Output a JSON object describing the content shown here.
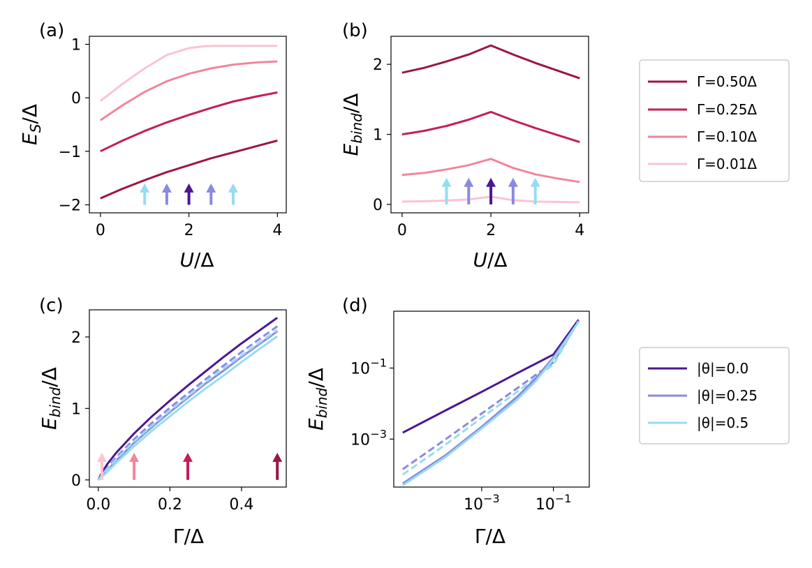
{
  "colors": {
    "g050": "#9c1545",
    "g025": "#c41e55",
    "g010": "#f2869a",
    "g001": "#fbc4d0",
    "th00": "#4a1890",
    "th025": "#8a8ae0",
    "th05": "#96dcf0"
  },
  "legend_top": {
    "entries": [
      {
        "label": "Γ=0.50Δ",
        "color_key": "g050"
      },
      {
        "label": "Γ=0.25Δ",
        "color_key": "g025"
      },
      {
        "label": "Γ=0.10Δ",
        "color_key": "g010"
      },
      {
        "label": "Γ=0.01Δ",
        "color_key": "g001"
      }
    ]
  },
  "legend_bottom": {
    "entries": [
      {
        "label": "|θ|=0.0",
        "color_key": "th00"
      },
      {
        "label": "|θ|=0.25",
        "color_key": "th025"
      },
      {
        "label": "|θ|=0.5",
        "color_key": "th05"
      }
    ]
  },
  "chart_data": [
    {
      "panel": "(a)",
      "type": "line",
      "xlabel": "U/Δ",
      "ylabel": "E_S/Δ",
      "xlim": [
        -0.25,
        4.2
      ],
      "ylim": [
        -2.15,
        1.15
      ],
      "xticks": [
        {
          "v": 0,
          "label": "0"
        },
        {
          "v": 2,
          "label": "2"
        },
        {
          "v": 4,
          "label": "4"
        }
      ],
      "yticks": [
        {
          "v": -2,
          "label": "−2"
        },
        {
          "v": -1,
          "label": "−1"
        },
        {
          "v": 0,
          "label": "0"
        },
        {
          "v": 1,
          "label": "1"
        }
      ],
      "series": [
        {
          "name": "Γ=0.50Δ",
          "color_key": "g050",
          "x": [
            0,
            0.5,
            1,
            1.5,
            2,
            2.5,
            3,
            3.5,
            4
          ],
          "y": [
            -1.88,
            -1.7,
            -1.54,
            -1.39,
            -1.26,
            -1.13,
            -1.02,
            -0.91,
            -0.8
          ]
        },
        {
          "name": "Γ=0.25Δ",
          "color_key": "g025",
          "x": [
            0,
            0.5,
            1,
            1.5,
            2,
            2.5,
            3,
            3.5,
            4
          ],
          "y": [
            -1.0,
            -0.8,
            -0.62,
            -0.46,
            -0.32,
            -0.19,
            -0.07,
            0.02,
            0.1
          ]
        },
        {
          "name": "Γ=0.10Δ",
          "color_key": "g010",
          "x": [
            0,
            0.5,
            1,
            1.5,
            2,
            2.5,
            3,
            3.5,
            4
          ],
          "y": [
            -0.42,
            -0.14,
            0.11,
            0.31,
            0.45,
            0.55,
            0.62,
            0.66,
            0.68
          ]
        },
        {
          "name": "Γ=0.01Δ",
          "color_key": "g001",
          "x": [
            0,
            0.5,
            1,
            1.5,
            2,
            2.3,
            2.5,
            3,
            3.5,
            4
          ],
          "y": [
            -0.06,
            0.26,
            0.55,
            0.8,
            0.93,
            0.96,
            0.97,
            0.97,
            0.97,
            0.97
          ]
        }
      ],
      "arrows": [
        {
          "x": 1.0,
          "y0": -2.0,
          "y1": -1.6,
          "color_key": "th05"
        },
        {
          "x": 1.5,
          "y0": -2.0,
          "y1": -1.6,
          "color_key": "th025"
        },
        {
          "x": 2.0,
          "y0": -2.0,
          "y1": -1.6,
          "color_key": "th00"
        },
        {
          "x": 2.5,
          "y0": -2.0,
          "y1": -1.6,
          "color_key": "th025"
        },
        {
          "x": 3.0,
          "y0": -2.0,
          "y1": -1.6,
          "color_key": "th05"
        }
      ]
    },
    {
      "panel": "(b)",
      "type": "line",
      "xlabel": "U/Δ",
      "ylabel": "E_bind/Δ",
      "xlim": [
        -0.25,
        4.2
      ],
      "ylim": [
        -0.12,
        2.4
      ],
      "xticks": [
        {
          "v": 0,
          "label": "0"
        },
        {
          "v": 2,
          "label": "2"
        },
        {
          "v": 4,
          "label": "4"
        }
      ],
      "yticks": [
        {
          "v": 0,
          "label": "0"
        },
        {
          "v": 1,
          "label": "1"
        },
        {
          "v": 2,
          "label": "2"
        }
      ],
      "series": [
        {
          "name": "Γ=0.50Δ",
          "color_key": "g050",
          "x": [
            0,
            0.5,
            1,
            1.5,
            2,
            2.5,
            3,
            3.5,
            4
          ],
          "y": [
            1.88,
            1.95,
            2.04,
            2.14,
            2.27,
            2.14,
            2.02,
            1.91,
            1.8
          ]
        },
        {
          "name": "Γ=0.25Δ",
          "color_key": "g025",
          "x": [
            0,
            0.5,
            1,
            1.5,
            2,
            2.5,
            3,
            3.5,
            4
          ],
          "y": [
            1.0,
            1.05,
            1.12,
            1.21,
            1.32,
            1.2,
            1.09,
            0.99,
            0.89
          ]
        },
        {
          "name": "Γ=0.10Δ",
          "color_key": "g010",
          "x": [
            0,
            0.5,
            1,
            1.5,
            2,
            2.5,
            3,
            3.5,
            4
          ],
          "y": [
            0.42,
            0.45,
            0.5,
            0.56,
            0.65,
            0.52,
            0.43,
            0.37,
            0.32
          ]
        },
        {
          "name": "Γ=0.01Δ",
          "color_key": "g001",
          "x": [
            0,
            0.5,
            1,
            1.5,
            2,
            2.5,
            3,
            3.5,
            4
          ],
          "y": [
            0.04,
            0.045,
            0.055,
            0.07,
            0.11,
            0.06,
            0.04,
            0.035,
            0.03
          ]
        }
      ],
      "arrows": [
        {
          "x": 1.0,
          "y0": 0.0,
          "y1": 0.38,
          "color_key": "th05"
        },
        {
          "x": 1.5,
          "y0": 0.0,
          "y1": 0.38,
          "color_key": "th025"
        },
        {
          "x": 2.0,
          "y0": 0.0,
          "y1": 0.38,
          "color_key": "th00"
        },
        {
          "x": 2.5,
          "y0": 0.0,
          "y1": 0.38,
          "color_key": "th025"
        },
        {
          "x": 3.0,
          "y0": 0.0,
          "y1": 0.38,
          "color_key": "th05"
        }
      ]
    },
    {
      "panel": "(c)",
      "type": "line",
      "xlabel": "Γ/Δ",
      "ylabel": "E_bind/Δ",
      "xlim": [
        -0.025,
        0.525
      ],
      "ylim": [
        -0.1,
        2.38
      ],
      "xticks": [
        {
          "v": 0,
          "label": "0.0"
        },
        {
          "v": 0.2,
          "label": "0.2"
        },
        {
          "v": 0.4,
          "label": "0.4"
        }
      ],
      "yticks": [
        {
          "v": 0,
          "label": "0"
        },
        {
          "v": 1,
          "label": "1"
        },
        {
          "v": 2,
          "label": "2"
        }
      ],
      "series": [
        {
          "name": "|θ|=0.0",
          "color_key": "th00",
          "dashed": false,
          "x": [
            0,
            0.01,
            0.025,
            0.05,
            0.1,
            0.15,
            0.2,
            0.25,
            0.3,
            0.35,
            0.4,
            0.45,
            0.5
          ],
          "y": [
            0.0,
            0.1,
            0.22,
            0.38,
            0.65,
            0.89,
            1.11,
            1.32,
            1.52,
            1.72,
            1.91,
            2.09,
            2.27
          ]
        },
        {
          "name": "|θ|=0.25 (dashed)",
          "color_key": "th025",
          "dashed": true,
          "x": [
            0,
            0.01,
            0.025,
            0.05,
            0.1,
            0.15,
            0.2,
            0.25,
            0.3,
            0.35,
            0.4,
            0.45,
            0.5
          ],
          "y": [
            0.0,
            0.07,
            0.17,
            0.32,
            0.57,
            0.8,
            1.01,
            1.21,
            1.41,
            1.6,
            1.79,
            1.97,
            2.15
          ]
        },
        {
          "name": "|θ|=0.25",
          "color_key": "th025",
          "dashed": false,
          "x": [
            0,
            0.01,
            0.025,
            0.05,
            0.1,
            0.15,
            0.2,
            0.25,
            0.3,
            0.35,
            0.4,
            0.45,
            0.5
          ],
          "y": [
            0.0,
            0.05,
            0.13,
            0.27,
            0.52,
            0.74,
            0.95,
            1.15,
            1.35,
            1.53,
            1.72,
            1.9,
            2.08
          ]
        },
        {
          "name": "|θ|=0.5 (dashed)",
          "color_key": "th05",
          "dashed": true,
          "x": [
            0,
            0.01,
            0.025,
            0.05,
            0.1,
            0.15,
            0.2,
            0.25,
            0.3,
            0.35,
            0.4,
            0.45,
            0.5
          ],
          "y": [
            0.0,
            0.06,
            0.15,
            0.29,
            0.54,
            0.76,
            0.97,
            1.17,
            1.37,
            1.56,
            1.74,
            1.92,
            2.1
          ]
        },
        {
          "name": "|θ|=0.5",
          "color_key": "th05",
          "dashed": false,
          "x": [
            0,
            0.01,
            0.025,
            0.05,
            0.1,
            0.15,
            0.2,
            0.25,
            0.3,
            0.35,
            0.4,
            0.45,
            0.5
          ],
          "y": [
            0.0,
            0.04,
            0.11,
            0.24,
            0.47,
            0.69,
            0.89,
            1.09,
            1.28,
            1.46,
            1.65,
            1.83,
            2.01
          ]
        }
      ],
      "arrows": [
        {
          "x": 0.01,
          "y0": 0.0,
          "y1": 0.38,
          "color_key": "g001"
        },
        {
          "x": 0.1,
          "y0": 0.0,
          "y1": 0.38,
          "color_key": "g010"
        },
        {
          "x": 0.25,
          "y0": 0.0,
          "y1": 0.38,
          "color_key": "g025"
        },
        {
          "x": 0.5,
          "y0": 0.0,
          "y1": 0.38,
          "color_key": "g050"
        }
      ]
    },
    {
      "panel": "(d)",
      "type": "line",
      "xscale": "log",
      "yscale": "log",
      "xlabel": "Γ/Δ",
      "ylabel": "E_bind/Δ",
      "xlim_log10": [
        -5.45,
        0.0
      ],
      "ylim_log10": [
        -4.35,
        0.6
      ],
      "xticks": [
        {
          "v": -3,
          "label": "10",
          "exp": "−3"
        },
        {
          "v": -1,
          "label": "10",
          "exp": "−1"
        }
      ],
      "yticks": [
        {
          "v": -3,
          "label": "10",
          "exp": "−3"
        },
        {
          "v": -1,
          "label": "10",
          "exp": "−1"
        }
      ],
      "series": [
        {
          "name": "|θ|=0.0",
          "color_key": "th00",
          "dashed": false,
          "log10_x": [
            -5.2,
            -4,
            -3,
            -2,
            -1,
            -0.3
          ],
          "log10_y": [
            -2.82,
            -2.19,
            -1.67,
            -1.14,
            -0.62,
            0.36
          ]
        },
        {
          "name": "|θ|=0.25 (dashed)",
          "color_key": "th025",
          "dashed": true,
          "log10_x": [
            -5.2,
            -4,
            -3,
            -2,
            -1,
            -0.3
          ],
          "log10_y": [
            -3.85,
            -3.0,
            -2.28,
            -1.56,
            -0.84,
            0.33
          ]
        },
        {
          "name": "|θ|=0.5 (dashed)",
          "color_key": "th05",
          "dashed": true,
          "log10_x": [
            -5.2,
            -4,
            -3,
            -2,
            -1,
            -0.3
          ],
          "log10_y": [
            -4.0,
            -3.15,
            -2.4,
            -1.66,
            -0.9,
            0.32
          ]
        },
        {
          "name": "|θ|=0.25",
          "color_key": "th025",
          "dashed": false,
          "log10_x": [
            -5.2,
            -4,
            -3,
            -2,
            -1.5,
            -1,
            -0.3
          ],
          "log10_y": [
            -4.25,
            -3.45,
            -2.65,
            -1.8,
            -1.3,
            -0.7,
            0.31
          ]
        },
        {
          "name": "|θ|=0.5",
          "color_key": "th05",
          "dashed": false,
          "log10_x": [
            -5.2,
            -4,
            -3,
            -2,
            -1.5,
            -1,
            -0.3
          ],
          "log10_y": [
            -4.3,
            -3.5,
            -2.7,
            -1.88,
            -1.38,
            -0.75,
            0.3
          ]
        }
      ]
    }
  ]
}
